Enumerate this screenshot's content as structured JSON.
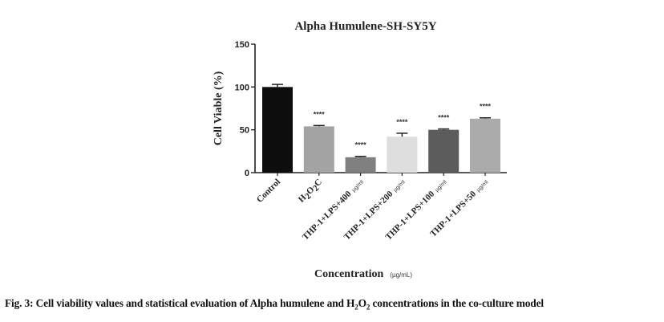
{
  "chart_data": {
    "type": "bar",
    "title": "Alpha Humulene-SH-SY5Y",
    "xlabel": "Concentration",
    "xlabel_unit": "(µg/mL)",
    "ylabel": "Cell Viable (%)",
    "ylim": [
      0,
      150
    ],
    "yticks": [
      0,
      50,
      100,
      150
    ],
    "grid": false,
    "legend": "none",
    "categories": [
      "Control",
      "H2O2 C",
      "THP-1+LPS+400 µg/ml",
      "THP-1+LPS+200 µg/ml",
      "THP-1+LPS+100 µg/ml",
      "THP-1+LPS+50 µg/ml"
    ],
    "values": [
      100,
      54,
      18,
      42,
      50,
      63
    ],
    "errors": [
      3,
      1,
      1,
      4,
      1,
      1
    ],
    "annotations": [
      "",
      "****",
      "****",
      "****",
      "****",
      "****"
    ],
    "bar_colors": [
      "#0d0d0d",
      "#a3a3a3",
      "#808080",
      "#dedede",
      "#5c5c5c",
      "#ababab"
    ]
  },
  "labels": {
    "title": "Alpha Humulene-SH-SY5Y",
    "ylabel": "Cell Viable (%)",
    "xlabel": "Concentration",
    "xunit": "(µg/mL)",
    "yticks": [
      "0",
      "50",
      "100",
      "150"
    ],
    "cats": [
      {
        "main": "Control",
        "unit": ""
      },
      {
        "main": "H2O2 C",
        "unit": ""
      },
      {
        "main": "THP-1+LPS+400",
        "unit": "µg/ml"
      },
      {
        "main": "THP-1+LPS+200",
        "unit": "µg/ml"
      },
      {
        "main": "THP-1+LPS+100",
        "unit": "µg/ml"
      },
      {
        "main": "THP-1+LPS+50",
        "unit": "µg/ml"
      }
    ],
    "star": "****"
  },
  "caption": {
    "prefix": "Fig. 3: Cell viability values and statistical evaluation of Alpha humulene and H",
    "sub1": "2",
    "mid": "O",
    "sub2": "2",
    "suffix": " concentrations in the co-culture model"
  }
}
